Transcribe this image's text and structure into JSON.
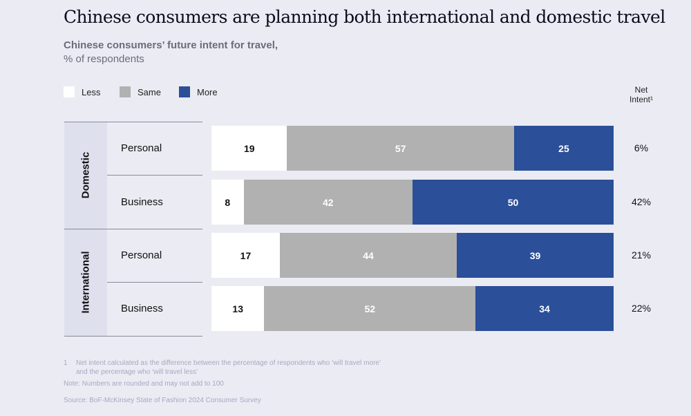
{
  "title": "Chinese consumers are planning both international and domestic travel",
  "subtitle_bold": "Chinese consumers’ future intent for travel,",
  "subtitle": "% of respondents",
  "net_header_1": "Net",
  "net_header_2": "Intent¹",
  "groups": [
    "Domestic",
    "International"
  ],
  "footnotes": {
    "n1_num": "1",
    "n1_a": "Net intent calculated as the difference between the percentage of respondents who ‘will travel more’",
    "n1_b": "and the percentage who ‘will travel less’",
    "note": "Note: Numbers are rounded and may not add to 100",
    "source": "Source: BoF-McKinsey State of Fashion 2024 Consumer Survey"
  },
  "chart_data": {
    "type": "bar",
    "stacked": true,
    "orientation": "horizontal",
    "legend": [
      "Less",
      "Same",
      "More"
    ],
    "legend_position": "top-left",
    "colors": {
      "Less": "#ffffff",
      "Same": "#b1b1b1",
      "More": "#2b4f98"
    },
    "rows": [
      {
        "group": "Domestic",
        "label": "Personal",
        "values": [
          19,
          57,
          25
        ],
        "net": "6%"
      },
      {
        "group": "Domestic",
        "label": "Business",
        "values": [
          8,
          42,
          50
        ],
        "net": "42%"
      },
      {
        "group": "International",
        "label": "Personal",
        "values": [
          17,
          44,
          39
        ],
        "net": "21%"
      },
      {
        "group": "International",
        "label": "Business",
        "values": [
          13,
          52,
          34
        ],
        "net": "22%"
      }
    ]
  }
}
